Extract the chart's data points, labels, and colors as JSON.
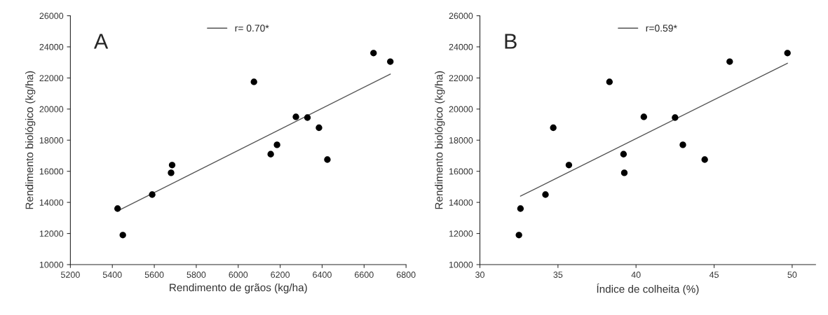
{
  "chart_data": [
    {
      "type": "scatter",
      "xlabel": "Rendimento de grãos (kg/ha)",
      "ylabel": "Rendimento biológico (kg/ha)",
      "annotations": [
        "A"
      ],
      "xlim": [
        5200,
        6800
      ],
      "xticks": [
        5200,
        5400,
        5600,
        5800,
        6000,
        6200,
        6400,
        6600,
        6800
      ],
      "ylim": [
        10000,
        26000
      ],
      "yticks": [
        10000,
        12000,
        14000,
        16000,
        18000,
        20000,
        22000,
        24000,
        26000
      ],
      "grid": false,
      "legend": "top",
      "series": [
        {
          "marker": "circle",
          "color": "#000000",
          "x": [
            5425,
            5450,
            5590,
            5680,
            5685,
            6075,
            6155,
            6185,
            6275,
            6330,
            6385,
            6425,
            6645,
            6725
          ],
          "values": [
            13600,
            11900,
            14500,
            15900,
            16400,
            21750,
            17100,
            17700,
            19500,
            19450,
            18800,
            16750,
            23600,
            23050
          ]
        },
        {
          "type": "line",
          "name": "r= 0.70*",
          "color": "#555555",
          "line_style": "solid",
          "x": [
            5425,
            6725
          ],
          "values": [
            13450,
            22250
          ]
        }
      ]
    },
    {
      "type": "scatter",
      "xlabel": "Índice de colheita (%)",
      "ylabel": "Rendimento biológico (kg/ha)",
      "annotations": [
        "B"
      ],
      "xlim": [
        30,
        51.5
      ],
      "xticks": [
        30,
        35,
        40,
        45,
        50
      ],
      "ylim": [
        10000,
        26000
      ],
      "yticks": [
        10000,
        12000,
        14000,
        16000,
        18000,
        20000,
        22000,
        24000,
        26000
      ],
      "grid": false,
      "legend": "top",
      "series": [
        {
          "marker": "circle",
          "color": "#000000",
          "x": [
            32.6,
            32.5,
            34.2,
            34.7,
            35.7,
            38.3,
            39.2,
            39.25,
            40.5,
            42.5,
            43.0,
            44.4,
            46.0,
            49.7
          ],
          "values": [
            13600,
            11900,
            14500,
            18800,
            16400,
            21750,
            17100,
            15900,
            19500,
            19450,
            17700,
            16750,
            23050,
            23600
          ]
        },
        {
          "type": "line",
          "name": "r=0.59*",
          "color": "#555555",
          "line_style": "solid",
          "x": [
            32.6,
            49.7
          ],
          "values": [
            14400,
            22950
          ]
        }
      ]
    }
  ]
}
